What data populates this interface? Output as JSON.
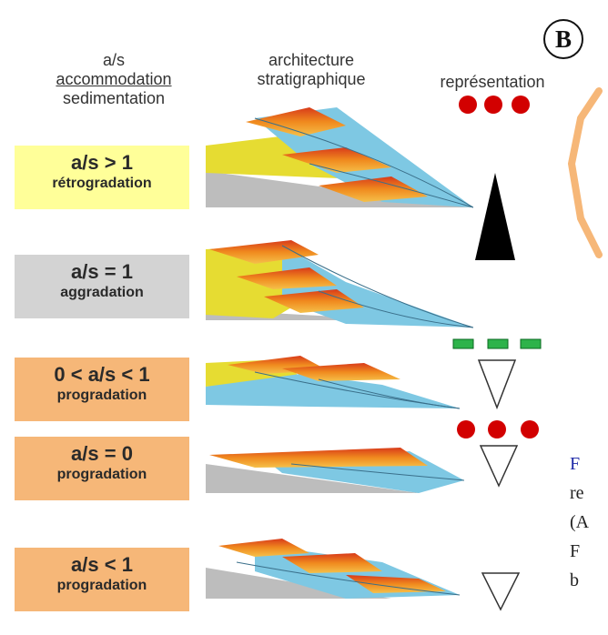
{
  "header": {
    "col1_line1": "a/s",
    "col1_line2": "accommodation",
    "col1_line3": "sedimentation",
    "col2_line1": "architecture",
    "col2_line2": "stratigraphique",
    "col3": "représentation"
  },
  "badge": "B",
  "rows": [
    {
      "ratio": "a/s > 1",
      "type": "rétrogradation",
      "color": "#ffff99"
    },
    {
      "ratio": "a/s = 1",
      "type": "aggradation",
      "color": "#d3d3d3"
    },
    {
      "ratio": "0 < a/s < 1",
      "type": "progradation",
      "color": "#f6b778"
    },
    {
      "ratio": "a/s = 0",
      "type": "progradation",
      "color": "#f6b778"
    },
    {
      "ratio": "a/s < 1",
      "type": "progradation",
      "color": "#f6b778"
    }
  ],
  "caption_letters": [
    "F",
    "re",
    "(A",
    "F",
    "b"
  ],
  "colors": {
    "red_dot": "#d20000",
    "green_dash": "#2db34a",
    "triangle_fill": "#000000",
    "water": "#7ec8e3",
    "sediment_yellow": "#e6dc32",
    "sediment_orange": "#f08a1e",
    "sediment_red": "#d83a1a",
    "basement": "#bdbdbd"
  }
}
